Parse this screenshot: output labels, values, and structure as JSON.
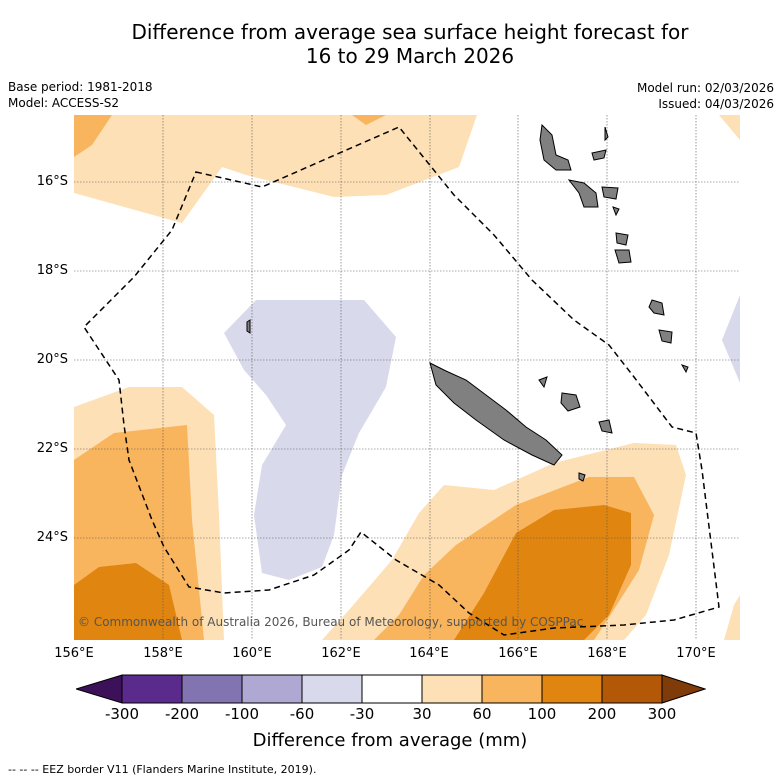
{
  "title": {
    "line1": "Difference from average sea surface height forecast for",
    "line2": "16 to 29 March 2026"
  },
  "meta": {
    "base_period": "Base period: 1981-2018",
    "model": "Model: ACCESS-S2",
    "model_run": "Model run: 02/03/2026",
    "issued": "Issued: 04/03/2026"
  },
  "map": {
    "lat_labels": [
      "16°S",
      "18°S",
      "20°S",
      "22°S",
      "24°S"
    ],
    "lon_labels": [
      "156°E",
      "158°E",
      "160°E",
      "162°E",
      "164°E",
      "166°E",
      "168°E",
      "170°E"
    ],
    "copyright": "© Commonwealth of Australia 2026, Bureau of Meteorology, supported by COSPPac",
    "colors": {
      "land": "#808080",
      "pos_30_60": "#fde0b5",
      "pos_60_100": "#f9b45e",
      "pos_100_200": "#e0850f",
      "neg_30_60": "#d9d9ec"
    }
  },
  "colorbar": {
    "ticks": [
      "-300",
      "-200",
      "-100",
      "-60",
      "-30",
      "30",
      "60",
      "100",
      "200",
      "300"
    ],
    "colors": [
      "#3d1159",
      "#5a2a8c",
      "#8274b1",
      "#aea8d2",
      "#d9d9ec",
      "#ffffff",
      "#fde0b5",
      "#f9b45e",
      "#e0850f",
      "#b35806",
      "#7f3b08"
    ],
    "title": "Difference from average (mm)"
  },
  "footer": {
    "legend": "-- -- -- EEZ border V11 (Flanders Marine Institute, 2019)."
  }
}
